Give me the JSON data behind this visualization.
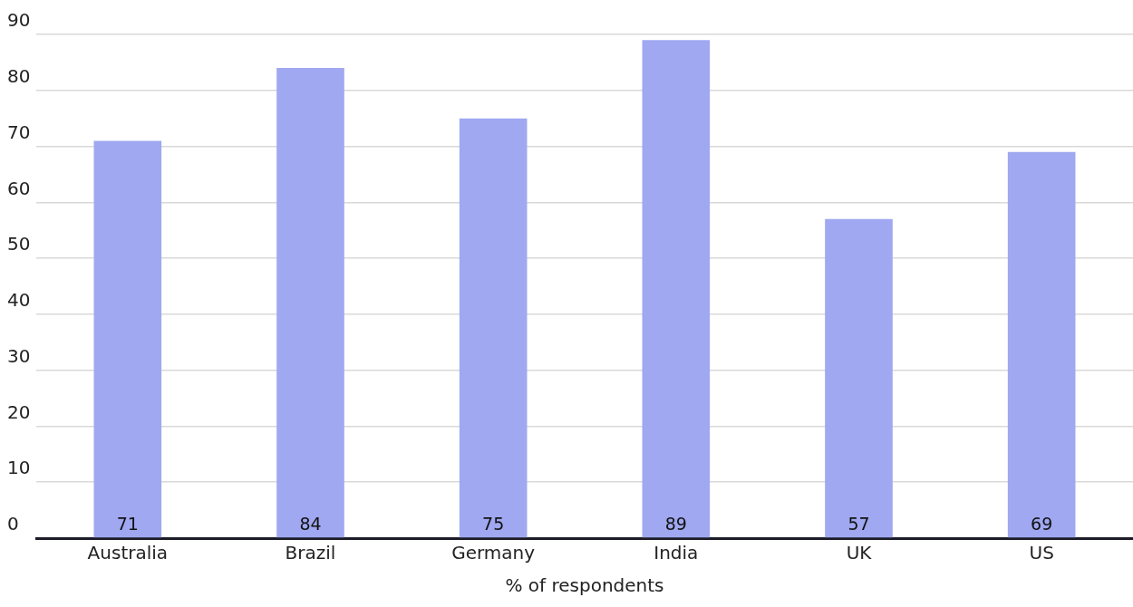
{
  "chart_data": {
    "type": "bar",
    "xlabel": "% of respondents",
    "categories": [
      "Australia",
      "Brazil",
      "Germany",
      "India",
      "UK",
      "US"
    ],
    "values": [
      71,
      84,
      75,
      89,
      57,
      69
    ],
    "color": "#9fa8f0",
    "ylim": [
      0,
      90
    ],
    "yticks": [
      0,
      10,
      20,
      30,
      40,
      50,
      60,
      70,
      80,
      90
    ],
    "grid": "y",
    "legend": false,
    "data_labels": true
  }
}
